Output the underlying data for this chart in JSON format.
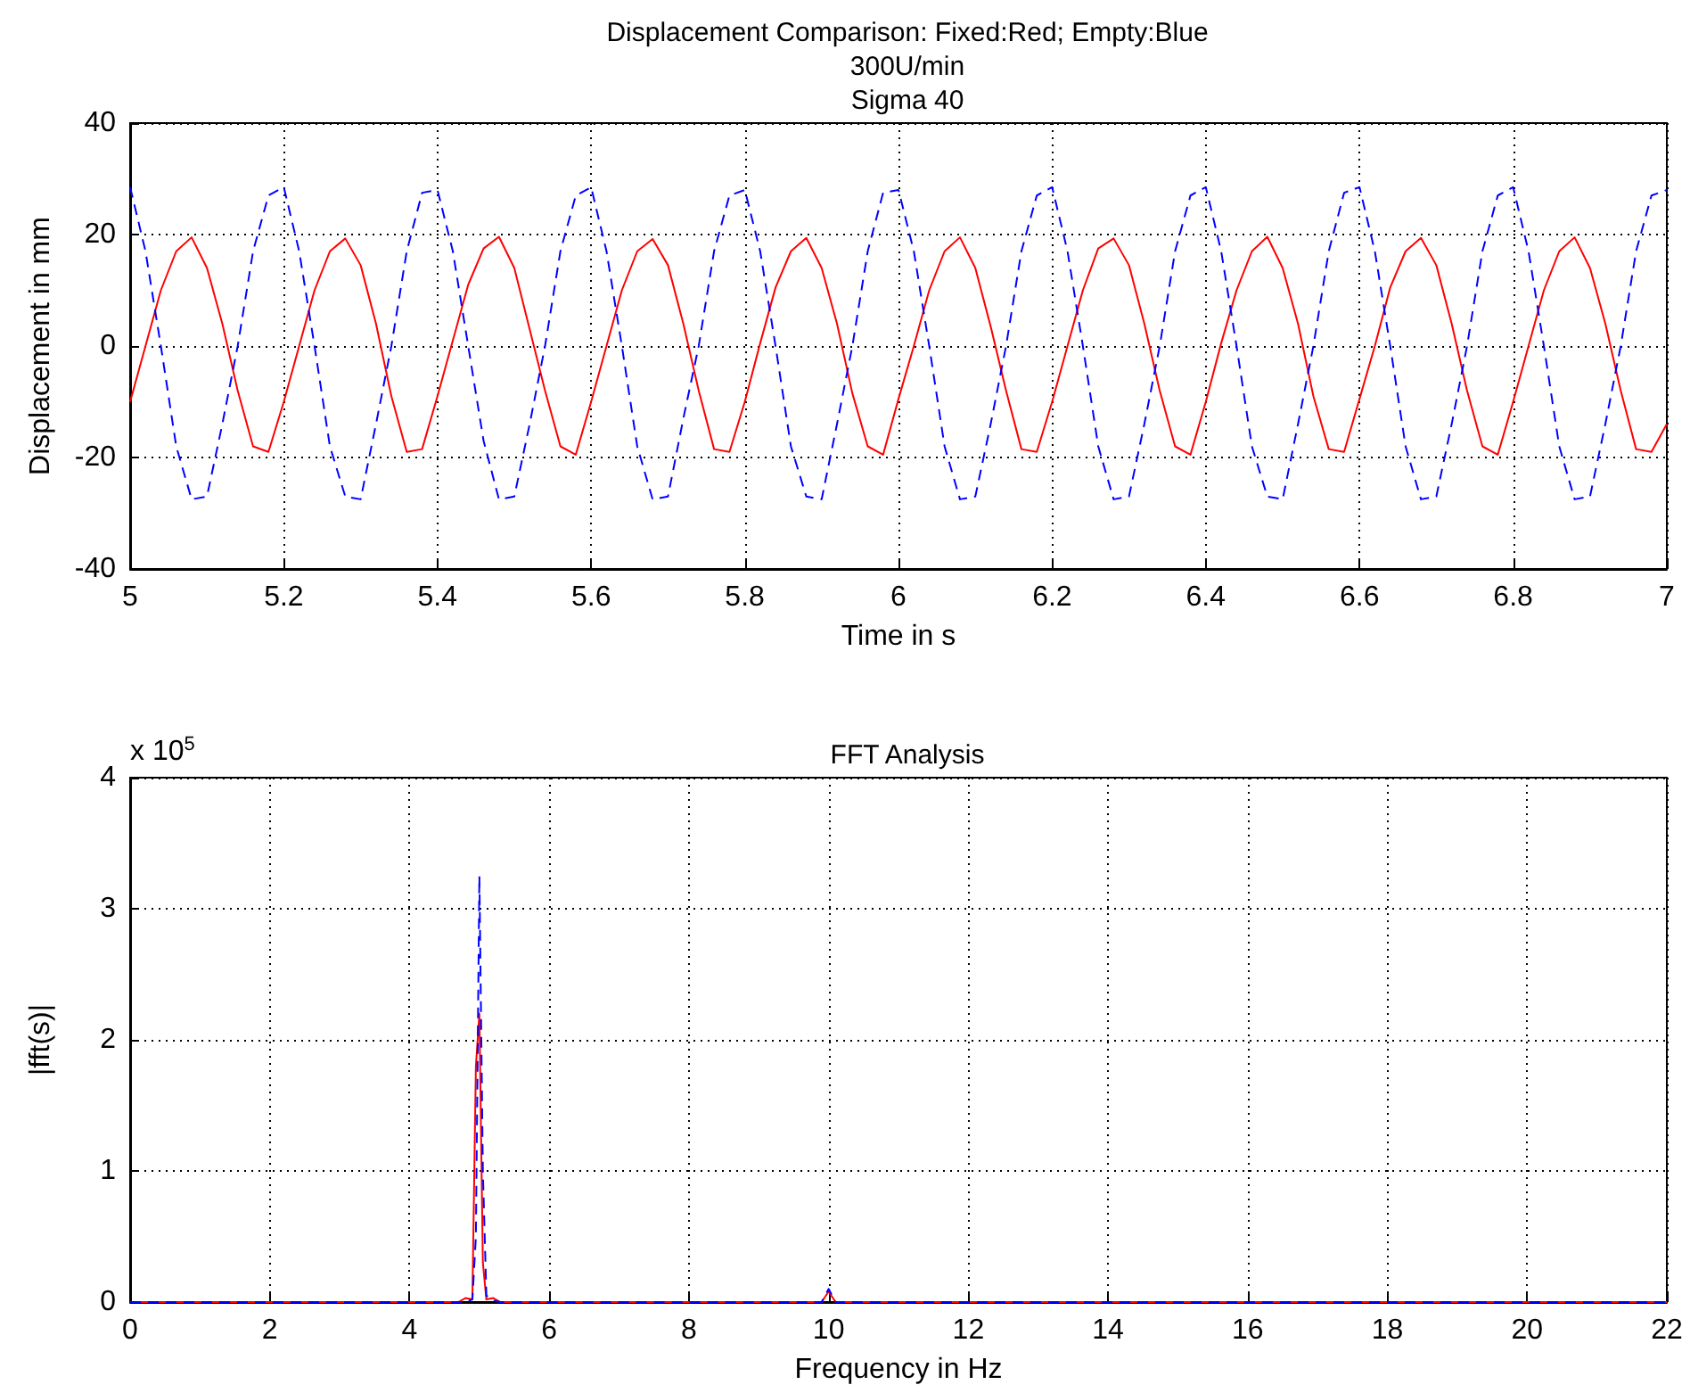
{
  "chart_data": [
    {
      "type": "line",
      "title": "Displacement Comparison: Fixed:Red; Empty:Blue\n300U/min\nSigma 40",
      "xlabel": "Time in s",
      "ylabel": "Displacement in mm",
      "x": [
        5,
        5.02,
        5.04,
        5.06,
        5.08,
        5.1,
        5.12,
        5.14,
        5.16,
        5.18,
        5.2,
        5.22,
        5.24,
        5.26,
        5.28,
        5.3,
        5.32,
        5.34,
        5.36,
        5.38,
        5.4,
        5.42,
        5.44,
        5.46,
        5.48,
        5.5,
        5.52,
        5.54,
        5.56,
        5.58,
        5.6,
        5.62,
        5.64,
        5.66,
        5.68,
        5.7,
        5.72,
        5.74,
        5.76,
        5.78,
        5.8,
        5.82,
        5.84,
        5.86,
        5.88,
        5.9,
        5.92,
        5.94,
        5.96,
        5.98,
        6,
        6.02,
        6.04,
        6.06,
        6.08,
        6.1,
        6.12,
        6.14,
        6.16,
        6.18,
        6.2,
        6.22,
        6.24,
        6.26,
        6.28,
        6.3,
        6.32,
        6.34,
        6.36,
        6.38,
        6.4,
        6.42,
        6.44,
        6.46,
        6.48,
        6.5,
        6.52,
        6.54,
        6.56,
        6.58,
        6.6,
        6.62,
        6.64,
        6.66,
        6.68,
        6.7,
        6.72,
        6.74,
        6.76,
        6.78,
        6.8,
        6.82,
        6.84,
        6.86,
        6.88,
        6.9,
        6.92,
        6.94,
        6.96,
        6.98,
        7
      ],
      "series": [
        {
          "color": "#ff0000",
          "line_style": "solid",
          "values": [
            -10,
            0,
            10,
            17,
            19.5,
            14,
            4,
            -8,
            -18,
            -19,
            -10,
            0,
            10,
            17,
            19.3,
            14.5,
            4,
            -9,
            -19,
            -18.5,
            -9,
            1,
            11,
            17.5,
            19.6,
            14,
            3,
            -8,
            -18,
            -19.5,
            -10,
            0,
            10,
            17,
            19.2,
            14.5,
            4,
            -8,
            -18.5,
            -19,
            -10,
            0.5,
            10.5,
            17,
            19.4,
            14,
            4,
            -8.5,
            -18,
            -19.5,
            -9.5,
            0,
            10,
            17,
            19.5,
            14,
            3.5,
            -8,
            -18.5,
            -19,
            -10,
            0,
            10,
            17.5,
            19.3,
            14.5,
            4,
            -8,
            -18,
            -19.5,
            -10,
            0.5,
            10,
            17,
            19.6,
            14,
            4,
            -9,
            -18.5,
            -19,
            -9.5,
            0,
            10.5,
            17,
            19.4,
            14.5,
            4,
            -8,
            -18,
            -19.5,
            -10,
            0,
            10,
            17,
            19.5,
            14,
            4,
            -8,
            -18.5,
            -19,
            -14
          ]
        },
        {
          "color": "#0000ff",
          "line_style": "dashed",
          "values": [
            28.5,
            17,
            0,
            -18,
            -27.5,
            -27,
            -14,
            0,
            17,
            27,
            28.5,
            17,
            0,
            -18,
            -27,
            -27.5,
            -14,
            0,
            17,
            27.5,
            28,
            17,
            0,
            -17,
            -27.5,
            -27,
            -14,
            0,
            17,
            27,
            28.5,
            17,
            0,
            -18,
            -27.5,
            -27,
            -13,
            0,
            17,
            27,
            28,
            17,
            0,
            -18,
            -27,
            -27.5,
            -14,
            0,
            17,
            27.5,
            28,
            17,
            0,
            -18,
            -27.5,
            -27,
            -14,
            0,
            17,
            27,
            28.5,
            17,
            0,
            -18,
            -27.5,
            -27,
            -14,
            0,
            17,
            27,
            28.5,
            17,
            0,
            -18,
            -27,
            -27.5,
            -14,
            0,
            17,
            27.5,
            28.5,
            17,
            0,
            -18,
            -27.5,
            -27,
            -14,
            0,
            17,
            27,
            28.5,
            17,
            0,
            -18,
            -27.5,
            -27,
            -14,
            0,
            17,
            27,
            28
          ]
        }
      ],
      "xlim": [
        5,
        7
      ],
      "xticks": [
        5,
        5.2,
        5.4,
        5.6,
        5.8,
        6,
        6.2,
        6.4,
        6.6,
        6.8,
        7
      ],
      "ylim": [
        -40,
        40
      ],
      "yticks": [
        -40,
        -20,
        0,
        20,
        40
      ],
      "grid": true
    },
    {
      "type": "line",
      "title": "FFT Analysis",
      "xlabel": "Frequency in Hz",
      "ylabel": "|fft(s)|",
      "annotations": [
        "x 10$^{5}$"
      ],
      "x": [
        0,
        4.7,
        4.8,
        4.9,
        4.95,
        5,
        5.05,
        5.1,
        5.2,
        5.3,
        9.9,
        10,
        10.1,
        22
      ],
      "series": [
        {
          "color": "#ff0000",
          "line_style": "solid",
          "values": [
            0,
            0,
            0.03,
            0.02,
            1.8,
            2.2,
            0.3,
            0.02,
            0.03,
            0,
            0,
            0.08,
            0,
            0
          ]
        },
        {
          "color": "#0000ff",
          "line_style": "dashed",
          "values": [
            0,
            0,
            0,
            0.02,
            0.5,
            3.25,
            1,
            0.05,
            0.01,
            0,
            0,
            0.1,
            0,
            0
          ]
        }
      ],
      "xlim": [
        0,
        22
      ],
      "xticks": [
        0,
        2,
        4,
        6,
        8,
        10,
        12,
        14,
        16,
        18,
        20,
        22
      ],
      "ylim": [
        0,
        4
      ],
      "yticks": [
        0,
        1,
        2,
        3,
        4
      ],
      "grid": true
    }
  ]
}
